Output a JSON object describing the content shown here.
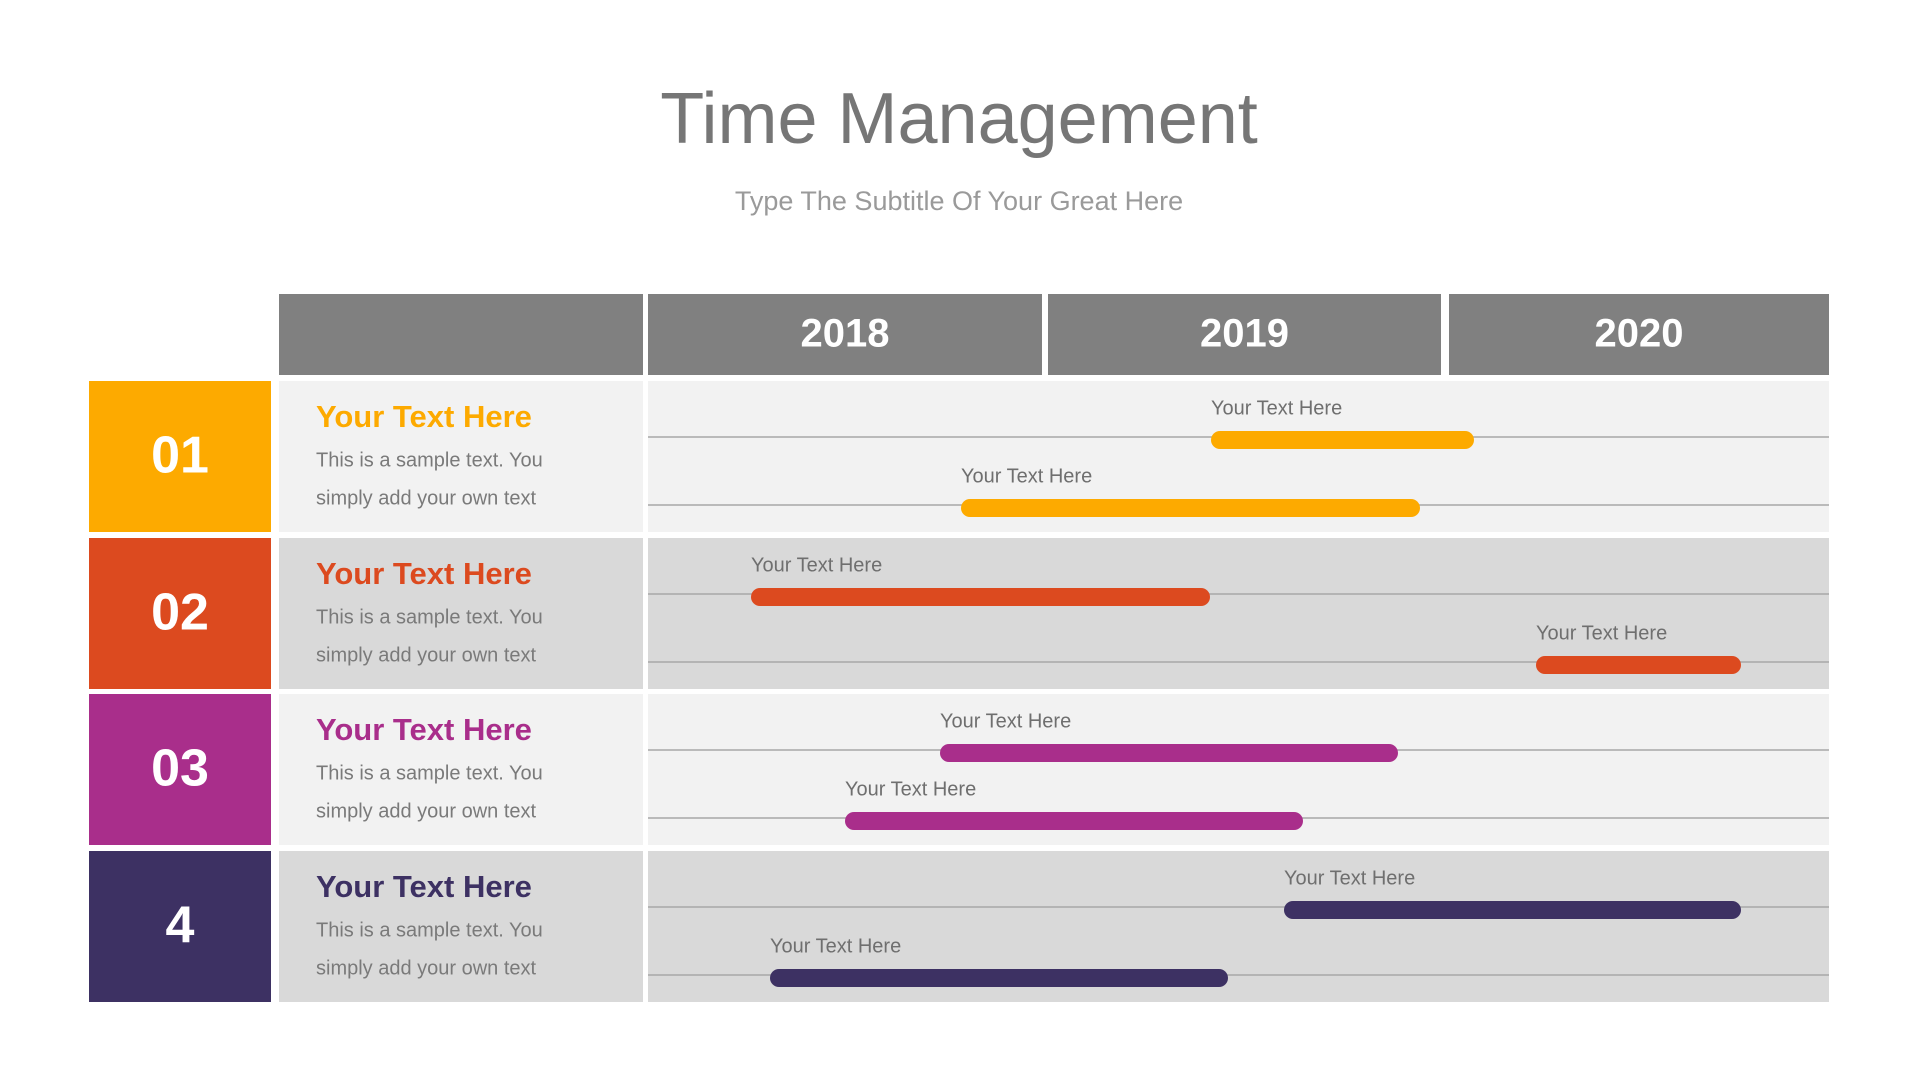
{
  "header": {
    "title": "Time Management",
    "subtitle": "Type The Subtitle Of Your Great Here"
  },
  "table": {
    "columns": [
      "2018",
      "2019",
      "2020"
    ],
    "rows": [
      {
        "number": "01",
        "heading": "Your Text Here",
        "text": [
          "This is a sample text. You",
          "simply add your own text"
        ],
        "tasks": [
          "Your Text Here",
          "Your Text Here"
        ]
      },
      {
        "number": "02",
        "heading": "Your Text Here",
        "text": [
          "This is a sample text. You",
          "simply add your own text"
        ],
        "tasks": [
          "Your Text Here",
          "Your Text Here"
        ]
      },
      {
        "number": "03",
        "heading": "Your Text Here",
        "text": [
          "This is a sample text. You",
          "simply add your own text"
        ],
        "tasks": [
          "Your Text Here",
          "Your Text Here"
        ]
      },
      {
        "number": "4",
        "heading": "Your Text Here",
        "text": [
          "This is a sample text. You",
          "simply add your own text"
        ],
        "tasks": [
          "Your Text Here",
          "Your Text Here"
        ]
      }
    ]
  }
}
